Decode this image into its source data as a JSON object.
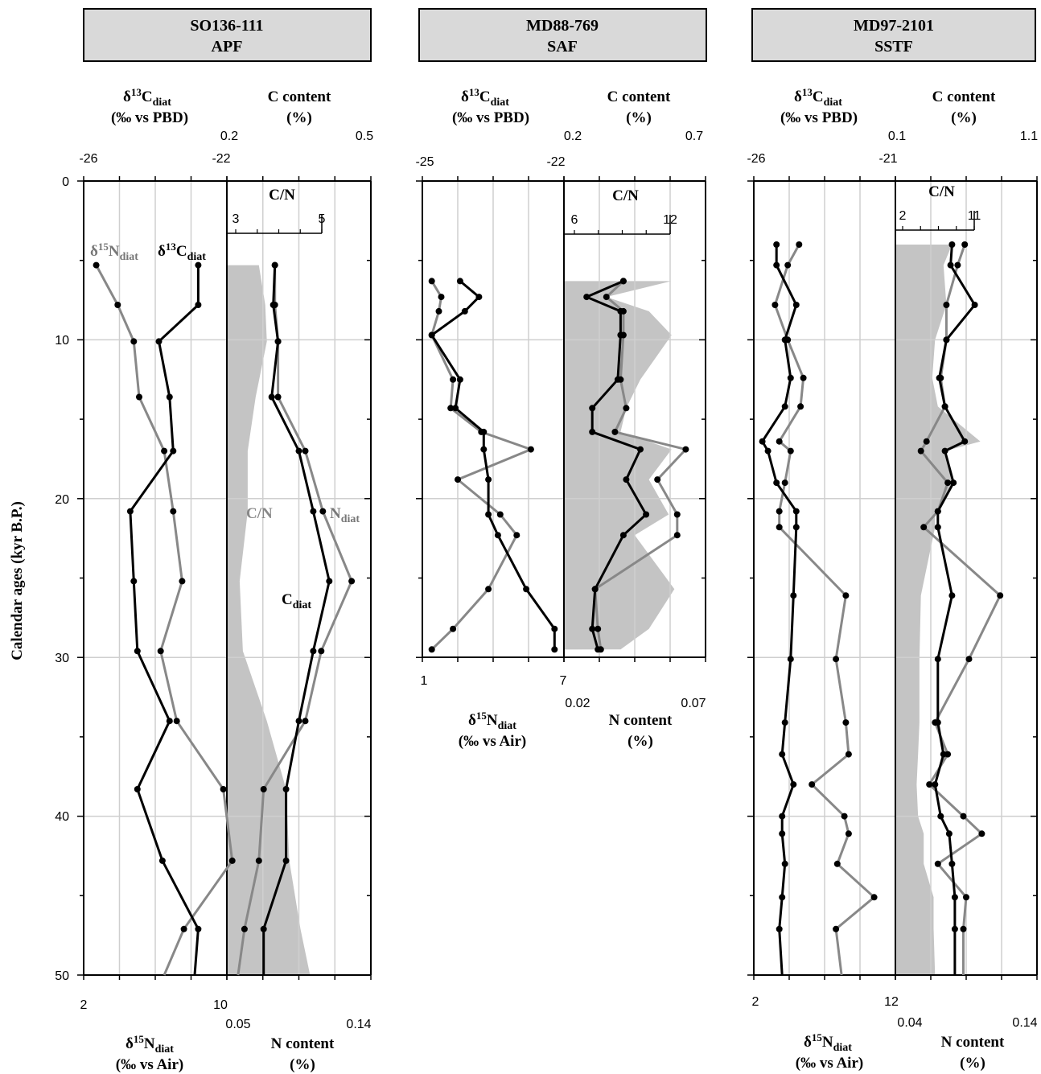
{
  "y_axis": {
    "label": "Calendar ages (kyr B.P.)",
    "ticks": [
      "0",
      "10",
      "20",
      "30",
      "40",
      "50"
    ],
    "range": [
      0,
      50
    ]
  },
  "cores": [
    {
      "title1": "SO136-111",
      "title2": "APF",
      "c13_label1": "δ13Cdiat",
      "c13_label2": "(‰ vs PBD)",
      "ccont_label1": "C content",
      "ccont_label2": "(%)",
      "c13_ticks": [
        "-26",
        "-22"
      ],
      "ccont_ticks": [
        "0.2",
        "0.5"
      ],
      "n15_ticks": [
        "2",
        "10"
      ],
      "ncont_ticks": [
        "0.05",
        "0.14"
      ],
      "n15_label1": "δ15Ndiat",
      "n15_label2": "(‰ vs Air)",
      "ncont_label1": "N content",
      "ncont_label2": "(%)",
      "cn_title": "C/N",
      "cn_ticks": [
        "3",
        "5"
      ],
      "annotations": {
        "n15": "δ15Ndiat",
        "c13": "δ13Cdiat",
        "cn": "C/N",
        "ndiat": "Ndiat",
        "cdiat": "Cdiat"
      }
    },
    {
      "title1": "MD88-769",
      "title2": "SAF",
      "c13_label1": "δ13Cdiat",
      "c13_label2": "(‰ vs PBD)",
      "ccont_label1": "C content",
      "ccont_label2": "(%)",
      "c13_ticks": [
        "-25",
        "-22"
      ],
      "ccont_ticks": [
        "0.2",
        "0.7"
      ],
      "n15_ticks": [
        "1",
        "7"
      ],
      "ncont_ticks": [
        "0.02",
        "0.07"
      ],
      "n15_label1": "δ15Ndiat",
      "n15_label2": "(‰ vs Air)",
      "ncont_label1": "N content",
      "ncont_label2": "(%)",
      "cn_title": "C/N",
      "cn_ticks": [
        "6",
        "12"
      ]
    },
    {
      "title1": "MD97-2101",
      "title2": "SSTF",
      "c13_label1": "δ13Cdiat",
      "c13_label2": "(‰ vs PBD)",
      "ccont_label1": "C content",
      "ccont_label2": "(%)",
      "c13_ticks": [
        "-26",
        "-21"
      ],
      "ccont_ticks": [
        "0.1",
        "1.1"
      ],
      "n15_ticks": [
        "2",
        "12"
      ],
      "ncont_ticks": [
        "0.04",
        "0.14"
      ],
      "n15_label1": "δ15Ndiat",
      "n15_label2": "(‰ vs Air)",
      "ncont_label1": "N content",
      "ncont_label2": "(%)",
      "cn_title": "C/N",
      "cn_ticks": [
        "2",
        "11"
      ]
    }
  ],
  "chart_data": [
    {
      "type": "line",
      "core": "SO136-111",
      "series": [
        {
          "name": "δ15Ndiat",
          "axis": "n15",
          "color": "#888888",
          "ages": [
            5.3,
            7.8,
            10.1,
            13.6,
            17.0,
            20.8,
            25.2,
            29.6,
            34.0,
            38.3,
            42.8,
            47.1,
            50.0
          ],
          "values": [
            2.7,
            3.9,
            4.8,
            5.1,
            6.5,
            7.0,
            7.5,
            6.3,
            7.2,
            9.8,
            10.3,
            7.6,
            6.5
          ]
        },
        {
          "name": "δ13Cdiat",
          "axis": "c13",
          "color": "#000000",
          "ages": [
            5.3,
            7.8,
            10.1,
            13.6,
            17.0,
            20.8,
            25.2,
            29.6,
            34.0,
            38.3,
            42.8,
            47.1,
            50.0
          ],
          "values": [
            -22.8,
            -22.8,
            -23.9,
            -23.6,
            -23.5,
            -24.7,
            -24.6,
            -24.5,
            -23.6,
            -24.5,
            -23.8,
            -22.8,
            -22.9
          ]
        },
        {
          "name": "Ndiat",
          "axis": "ncont",
          "color": "#888888",
          "ages": [
            5.3,
            7.8,
            10.1,
            13.6,
            17.0,
            20.8,
            25.2,
            29.6,
            34.0,
            38.3,
            42.8,
            47.1,
            50.0
          ],
          "values": [
            0.08,
            0.08,
            0.082,
            0.082,
            0.099,
            0.11,
            0.128,
            0.109,
            0.099,
            0.073,
            0.07,
            0.061,
            0.057
          ]
        },
        {
          "name": "Cdiat",
          "axis": "ncont",
          "color": "#000000",
          "ages": [
            5.3,
            7.8,
            10.1,
            13.6,
            17.0,
            20.8,
            25.2,
            29.6,
            34.0,
            38.3,
            42.8,
            47.1,
            50.0
          ],
          "values": [
            0.08,
            0.079,
            0.082,
            0.078,
            0.095,
            0.104,
            0.114,
            0.104,
            0.095,
            0.087,
            0.087,
            0.073,
            0.073
          ]
        },
        {
          "name": "C/N",
          "axis": "ncont",
          "color": "#c0c0c0",
          "ages": [
            5.3,
            7.8,
            10.1,
            13.6,
            17.0,
            20.8,
            25.2,
            29.6,
            34.0,
            38.3,
            42.8,
            47.1,
            50.0
          ],
          "values": [
            0.07,
            0.074,
            0.075,
            0.068,
            0.063,
            0.063,
            0.058,
            0.06,
            0.075,
            0.087,
            0.089,
            0.096,
            0.102
          ]
        }
      ]
    },
    {
      "type": "line",
      "core": "MD88-769",
      "series": [
        {
          "name": "δ15Ndiat",
          "axis": "n15",
          "color": "#888888",
          "ages": [
            6.3,
            7.3,
            8.2,
            9.7,
            12.5,
            14.3,
            15.8,
            16.9,
            18.8,
            21.0,
            22.3,
            25.7,
            28.2,
            29.5
          ],
          "values": [
            1.4,
            1.8,
            1.7,
            1.4,
            2.3,
            2.2,
            3.5,
            5.6,
            2.5,
            4.3,
            5.0,
            3.8,
            2.3,
            1.4
          ]
        },
        {
          "name": "δ13Cdiat",
          "axis": "c13",
          "color": "#000000",
          "ages": [
            6.3,
            7.3,
            8.2,
            9.7,
            12.5,
            14.3,
            15.8,
            16.9,
            18.8,
            21.0,
            22.3,
            25.7,
            28.2,
            29.5
          ],
          "values": [
            -24.2,
            -23.8,
            -24.1,
            -24.8,
            -24.2,
            -24.3,
            -23.7,
            -23.7,
            -23.6,
            -23.6,
            -23.4,
            -22.8,
            -22.2,
            -22.2
          ]
        },
        {
          "name": "Ndiat",
          "axis": "ncont",
          "color": "#888888",
          "ages": [
            6.3,
            7.3,
            8.2,
            9.7,
            12.5,
            14.3,
            15.8,
            16.9,
            18.8,
            21.0,
            22.3,
            25.7,
            28.2,
            29.5
          ],
          "values": [
            0.041,
            0.035,
            0.041,
            0.041,
            0.04,
            0.042,
            0.038,
            0.063,
            0.053,
            0.06,
            0.06,
            0.031,
            0.032,
            0.033
          ]
        },
        {
          "name": "Cdiat",
          "axis": "ncont",
          "color": "#000000",
          "ages": [
            6.3,
            7.3,
            8.2,
            9.7,
            12.5,
            14.3,
            15.8,
            16.9,
            18.8,
            21.0,
            22.3,
            25.7,
            28.2,
            29.5
          ],
          "values": [
            0.041,
            0.028,
            0.04,
            0.04,
            0.039,
            0.03,
            0.03,
            0.047,
            0.042,
            0.049,
            0.041,
            0.031,
            0.03,
            0.032
          ]
        },
        {
          "name": "C/N",
          "axis": "ncont",
          "color": "#c0c0c0",
          "ages": [
            6.3,
            7.3,
            8.2,
            9.7,
            12.5,
            14.3,
            15.8,
            16.9,
            18.8,
            21.0,
            22.3,
            25.7,
            28.2,
            29.5
          ],
          "values": [
            0.058,
            0.035,
            0.05,
            0.058,
            0.047,
            0.042,
            0.04,
            0.058,
            0.05,
            0.057,
            0.045,
            0.059,
            0.05,
            0.04
          ]
        }
      ]
    },
    {
      "type": "line",
      "core": "MD97-2101",
      "series": [
        {
          "name": "δ15Ndiat",
          "axis": "n15",
          "color": "#888888",
          "ages": [
            4.0,
            5.3,
            7.8,
            10.0,
            12.4,
            14.2,
            16.4,
            17.0,
            19.0,
            20.8,
            21.8,
            26.1,
            30.1,
            34.1,
            36.1,
            38.0,
            40.0,
            41.1,
            43.0,
            45.1,
            47.1,
            50.0
          ],
          "values": [
            5.2,
            4.4,
            3.5,
            4.4,
            5.5,
            5.3,
            3.8,
            4.6,
            4.2,
            3.8,
            3.8,
            8.5,
            7.8,
            8.5,
            8.7,
            6.1,
            8.4,
            8.7,
            7.9,
            10.5,
            7.8,
            8.2
          ]
        },
        {
          "name": "δ13Cdiat",
          "axis": "c13",
          "color": "#000000",
          "ages": [
            4.0,
            5.3,
            7.8,
            10.0,
            12.4,
            14.2,
            16.4,
            17.0,
            19.0,
            20.8,
            21.8,
            26.1,
            30.1,
            34.1,
            36.1,
            38.0,
            40.0,
            41.1,
            43.0,
            45.1,
            47.1,
            50.0
          ],
          "values": [
            -25.2,
            -25.2,
            -24.5,
            -24.9,
            -24.7,
            -24.9,
            -25.7,
            -25.5,
            -25.2,
            -24.5,
            -24.5,
            -24.6,
            -24.7,
            -24.9,
            -25.0,
            -24.6,
            -25.0,
            -25.0,
            -24.9,
            -25.0,
            -25.1,
            -25.0
          ]
        },
        {
          "name": "Ndiat",
          "axis": "ncont",
          "color": "#888888",
          "ages": [
            4.0,
            5.3,
            7.8,
            10.0,
            12.4,
            14.2,
            16.4,
            17.0,
            19.0,
            20.8,
            21.8,
            26.1,
            30.1,
            34.1,
            36.1,
            38.0,
            40.0,
            41.1,
            43.0,
            45.1,
            47.1,
            50.0
          ],
          "values": [
            0.089,
            0.084,
            0.076,
            0.076,
            0.072,
            0.075,
            0.062,
            0.058,
            0.077,
            0.07,
            0.06,
            0.114,
            0.092,
            0.068,
            0.077,
            0.064,
            0.088,
            0.101,
            0.07,
            0.09,
            0.088,
            0.088
          ]
        },
        {
          "name": "Cdiat",
          "axis": "ncont",
          "color": "#000000",
          "ages": [
            4.0,
            5.3,
            7.8,
            10.0,
            12.4,
            14.2,
            16.4,
            17.0,
            19.0,
            20.8,
            21.8,
            26.1,
            30.1,
            34.1,
            36.1,
            38.0,
            40.0,
            41.1,
            43.0,
            45.1,
            47.1,
            50.0
          ],
          "values": [
            0.08,
            0.079,
            0.096,
            0.076,
            0.071,
            0.075,
            0.089,
            0.075,
            0.081,
            0.07,
            0.07,
            0.08,
            0.07,
            0.07,
            0.074,
            0.068,
            0.072,
            0.078,
            0.08,
            0.082,
            0.082,
            0.082
          ]
        },
        {
          "name": "C/N",
          "axis": "ncont",
          "color": "#c0c0c0",
          "ages": [
            4.0,
            5.3,
            7.8,
            10.0,
            12.4,
            14.2,
            16.4,
            17.0,
            19.0,
            20.8,
            21.8,
            26.1,
            30.1,
            34.1,
            36.1,
            38.0,
            40.0,
            41.1,
            43.0,
            45.1,
            47.1,
            50.0
          ],
          "values": [
            0.08,
            0.074,
            0.076,
            0.068,
            0.066,
            0.07,
            0.1,
            0.075,
            0.082,
            0.068,
            0.068,
            0.058,
            0.057,
            0.057,
            0.056,
            0.055,
            0.056,
            0.06,
            0.06,
            0.067,
            0.067,
            0.068
          ]
        }
      ]
    }
  ]
}
